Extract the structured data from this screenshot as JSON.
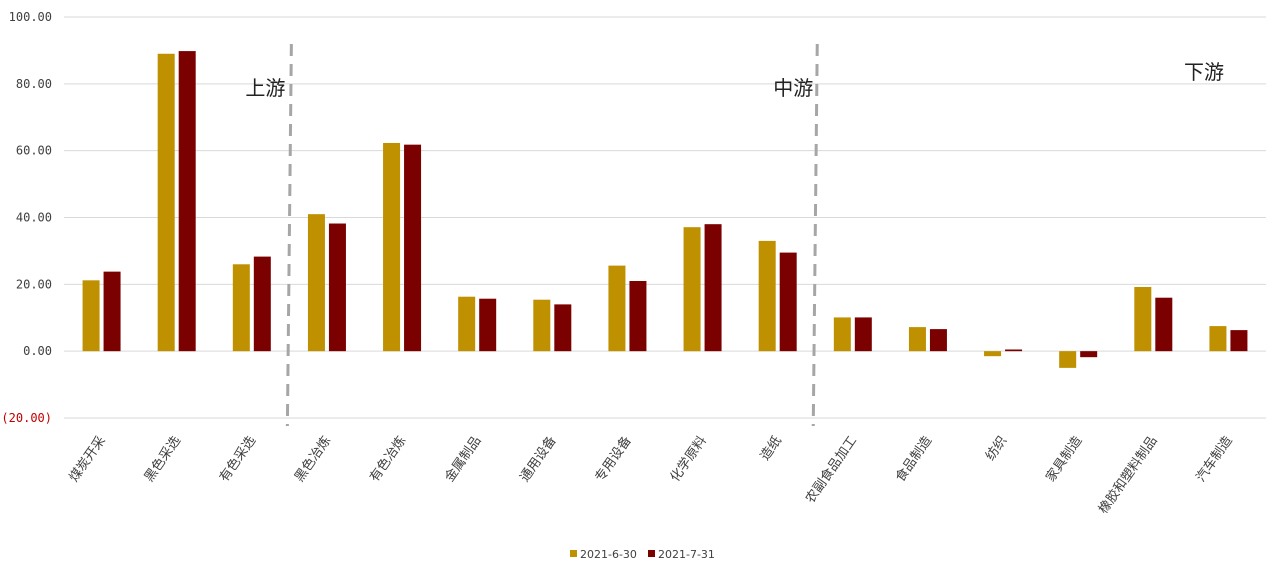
{
  "chart_data": {
    "type": "bar",
    "title": "",
    "xlabel": "",
    "ylabel": "",
    "ylim": [
      -20,
      100
    ],
    "yticks": [
      100,
      80,
      60,
      40,
      20,
      0,
      -20
    ],
    "ytick_labels": [
      "100.00",
      "80.00",
      "60.00",
      "40.00",
      "20.00",
      "0.00",
      "(20.00)"
    ],
    "grid": true,
    "legend_position": "bottom-center",
    "categories": [
      "煤炭开采",
      "黑色采选",
      "有色采选",
      "黑色冶炼",
      "有色冶炼",
      "金属制品",
      "通用设备",
      "专用设备",
      "化学原料",
      "造纸",
      "农副食品加工",
      "食品制造",
      "纺织",
      "家具制造",
      "橡胶和塑料制品",
      "汽车制造"
    ],
    "series": [
      {
        "name": "2021-6-30",
        "color": "#bf9000",
        "values": [
          21.2,
          89.0,
          26.0,
          41.0,
          62.3,
          16.3,
          15.4,
          25.6,
          37.1,
          33.0,
          10.1,
          7.2,
          -1.5,
          -5.0,
          19.2,
          7.5
        ]
      },
      {
        "name": "2021-7-31",
        "color": "#7b0000",
        "values": [
          23.8,
          89.8,
          28.3,
          38.2,
          61.8,
          15.7,
          14.0,
          21.0,
          38.0,
          29.5,
          10.1,
          6.6,
          0.5,
          -1.8,
          16.0,
          6.3
        ]
      }
    ],
    "regions": [
      {
        "label": "上游",
        "divider_after_index": 3
      },
      {
        "label": "中游",
        "divider_after_index": 10
      },
      {
        "label": "下游"
      }
    ]
  }
}
